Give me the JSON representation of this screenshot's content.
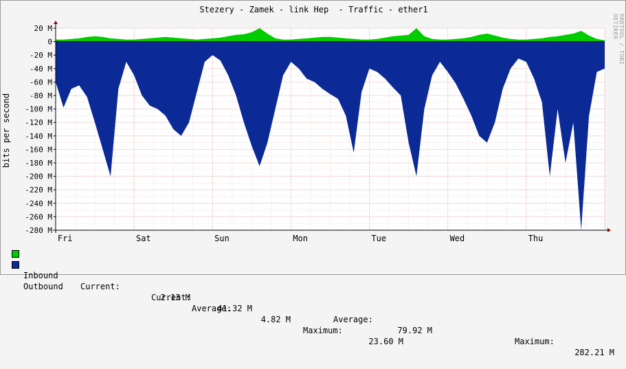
{
  "title": "Stezery - Zamek - link Hep  - Traffic - ether1",
  "watermark": "RRDTOOL / TOBI OETIKER",
  "colors": {
    "inbound": "#00cc00",
    "outbound": "#0b2a96",
    "grid": "#e6b0b0",
    "axis": "#000000",
    "arrow": "#990000"
  },
  "legend": {
    "inbound": {
      "name": "Inbound",
      "current_label": "Current:",
      "current_value": "2.13 M",
      "average_label": "Average:",
      "average_value": "4.82 M",
      "maximum_label": "Maximum:",
      "maximum_value": "23.60 M"
    },
    "outbound": {
      "name": "Outbound",
      "current_label": "Current:",
      "current_value": "41.32 M",
      "average_label": "Average:",
      "average_value": "79.92 M",
      "maximum_label": "Maximum:",
      "maximum_value": "282.21 M"
    }
  },
  "chart_data": {
    "type": "area",
    "title": "Stezery - Zamek - link Hep  - Traffic - ether1",
    "ylabel": "bits per second",
    "xlabel": "",
    "ylim": [
      -280,
      20
    ],
    "y_unit": "M",
    "yticks": [
      "20 M",
      "0",
      "-20 M",
      "-40 M",
      "-60 M",
      "-80 M",
      "-100 M",
      "-120 M",
      "-140 M",
      "-160 M",
      "-180 M",
      "-200 M",
      "-220 M",
      "-240 M",
      "-260 M",
      "-280 M"
    ],
    "ytick_values": [
      20,
      0,
      -20,
      -40,
      -60,
      -80,
      -100,
      -120,
      -140,
      -160,
      -180,
      -200,
      -220,
      -240,
      -260,
      -280
    ],
    "xlim": [
      0,
      7
    ],
    "x_unit": "days",
    "categories": [
      "Fri",
      "Sat",
      "Sun",
      "Mon",
      "Tue",
      "Wed",
      "Thu"
    ],
    "category_x": [
      0.12,
      1.12,
      2.12,
      3.12,
      4.12,
      5.12,
      6.12
    ],
    "grid": true,
    "legend_position": "bottom",
    "series": [
      {
        "name": "Inbound",
        "x": [
          0.0,
          0.1,
          0.2,
          0.3,
          0.4,
          0.5,
          0.6,
          0.7,
          0.8,
          0.9,
          1.0,
          1.1,
          1.2,
          1.3,
          1.4,
          1.5,
          1.6,
          1.7,
          1.8,
          1.9,
          2.0,
          2.1,
          2.2,
          2.3,
          2.4,
          2.5,
          2.6,
          2.7,
          2.8,
          2.9,
          3.0,
          3.1,
          3.2,
          3.3,
          3.4,
          3.5,
          3.6,
          3.7,
          3.8,
          3.9,
          4.0,
          4.1,
          4.2,
          4.3,
          4.4,
          4.5,
          4.6,
          4.7,
          4.8,
          4.9,
          5.0,
          5.1,
          5.2,
          5.3,
          5.4,
          5.5,
          5.6,
          5.7,
          5.8,
          5.9,
          6.0,
          6.1,
          6.2,
          6.3,
          6.4,
          6.5,
          6.6,
          6.7,
          6.8,
          6.9,
          7.0
        ],
        "values": [
          3,
          3,
          4,
          5,
          7,
          8,
          7,
          5,
          4,
          3,
          3,
          4,
          5,
          6,
          7,
          6,
          5,
          4,
          3,
          4,
          5,
          6,
          8,
          10,
          11,
          14,
          20,
          12,
          5,
          3,
          3,
          4,
          5,
          6,
          7,
          7,
          6,
          5,
          4,
          3,
          3,
          4,
          6,
          8,
          9,
          10,
          20,
          8,
          4,
          3,
          3,
          4,
          5,
          7,
          10,
          12,
          9,
          6,
          4,
          3,
          3,
          4,
          5,
          7,
          8,
          10,
          12,
          16,
          9,
          4,
          2
        ]
      },
      {
        "name": "Outbound",
        "x": [
          0.0,
          0.1,
          0.2,
          0.3,
          0.4,
          0.5,
          0.6,
          0.7,
          0.8,
          0.9,
          1.0,
          1.1,
          1.2,
          1.3,
          1.4,
          1.5,
          1.6,
          1.7,
          1.8,
          1.9,
          2.0,
          2.1,
          2.2,
          2.3,
          2.4,
          2.5,
          2.6,
          2.7,
          2.8,
          2.9,
          3.0,
          3.1,
          3.2,
          3.3,
          3.4,
          3.5,
          3.6,
          3.7,
          3.8,
          3.9,
          4.0,
          4.1,
          4.2,
          4.3,
          4.4,
          4.5,
          4.6,
          4.7,
          4.8,
          4.9,
          5.0,
          5.1,
          5.2,
          5.3,
          5.4,
          5.5,
          5.6,
          5.7,
          5.8,
          5.9,
          6.0,
          6.1,
          6.2,
          6.3,
          6.4,
          6.5,
          6.6,
          6.7,
          6.8,
          6.9,
          7.0
        ],
        "values": [
          -60,
          -98,
          -70,
          -65,
          -82,
          -120,
          -160,
          -200,
          -70,
          -30,
          -50,
          -80,
          -95,
          -100,
          -110,
          -130,
          -140,
          -120,
          -75,
          -30,
          -20,
          -28,
          -50,
          -80,
          -120,
          -155,
          -185,
          -150,
          -100,
          -50,
          -30,
          -40,
          -55,
          -60,
          -70,
          -78,
          -85,
          -110,
          -165,
          -75,
          -40,
          -45,
          -55,
          -68,
          -80,
          -150,
          -200,
          -100,
          -50,
          -30,
          -45,
          -62,
          -85,
          -110,
          -140,
          -150,
          -120,
          -70,
          -40,
          -25,
          -30,
          -55,
          -90,
          -200,
          -100,
          -180,
          -120,
          -280,
          -110,
          -45,
          -40
        ]
      }
    ]
  }
}
